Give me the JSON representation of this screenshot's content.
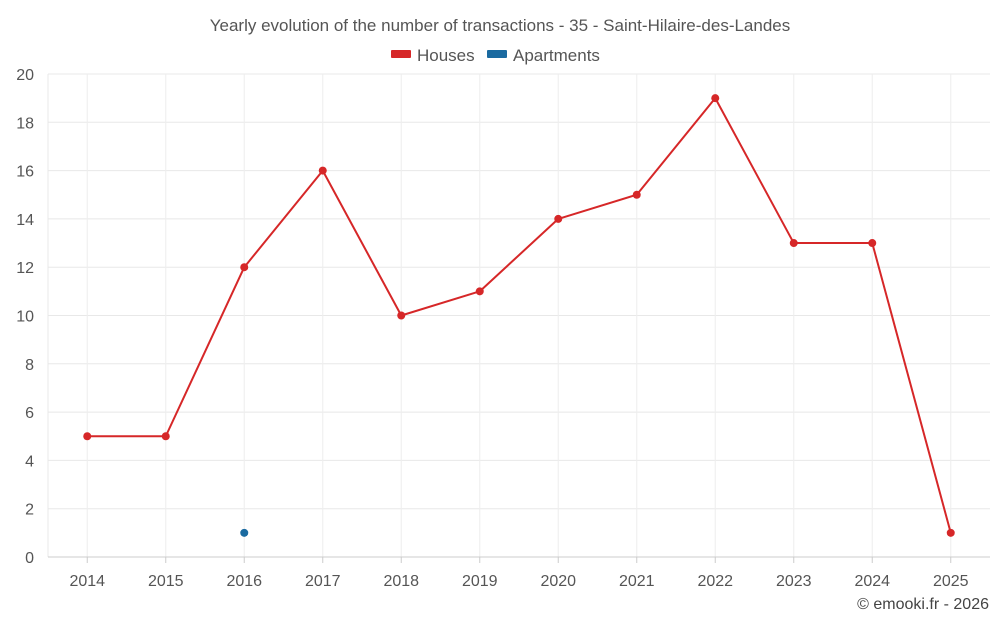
{
  "chart_data": {
    "type": "line",
    "title": "Yearly evolution of the number of transactions - 35 - Saint-Hilaire-des-Landes",
    "categories": [
      "2014",
      "2015",
      "2016",
      "2017",
      "2018",
      "2019",
      "2020",
      "2021",
      "2022",
      "2023",
      "2024",
      "2025"
    ],
    "series": [
      {
        "name": "Houses",
        "color": "#d62728",
        "values": [
          5,
          5,
          12,
          16,
          10,
          11,
          14,
          15,
          19,
          13,
          13,
          1
        ]
      },
      {
        "name": "Apartments",
        "color": "#1a6aa0",
        "values": [
          null,
          null,
          1,
          null,
          null,
          null,
          null,
          null,
          null,
          null,
          null,
          null
        ]
      }
    ],
    "ylim": [
      0,
      20
    ],
    "yticks": [
      "0",
      "2",
      "4",
      "6",
      "8",
      "10",
      "12",
      "14",
      "16",
      "18",
      "20"
    ],
    "xlabel": "",
    "ylabel": "",
    "grid": true,
    "legend_position": "top-center"
  },
  "credit": "© emooki.fr - 2026"
}
